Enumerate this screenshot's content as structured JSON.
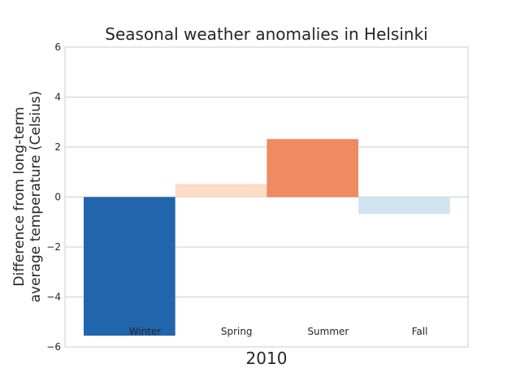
{
  "chart_data": {
    "type": "bar",
    "title": "Seasonal weather anomalies in Helsinki",
    "xlabel": "2010",
    "ylabel": [
      "Difference from long-term",
      "average temperature (Celsius)"
    ],
    "categories": [
      "Winter",
      "Spring",
      "Summer",
      "Fall"
    ],
    "values": [
      -5.55,
      0.52,
      2.32,
      -0.68
    ],
    "colors": [
      "#2166ac",
      "#fddbc7",
      "#ef8a62",
      "#d1e5f0"
    ],
    "ylim": [
      -6,
      6
    ],
    "yticks": [
      6,
      4,
      2,
      0,
      -2,
      -4,
      -6
    ],
    "ytick_labels": [
      "6",
      "4",
      "2",
      "0",
      "−2",
      "−4",
      "−6"
    ],
    "grid": true,
    "legend": false
  }
}
